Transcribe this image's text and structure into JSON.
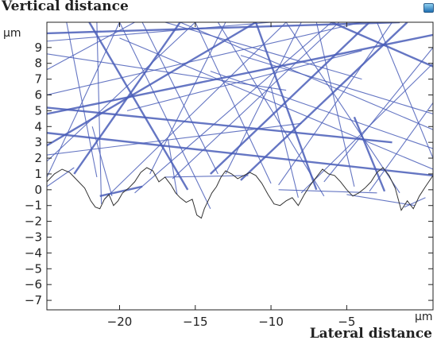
{
  "icons": {
    "app": "app-window-icon"
  },
  "colors": {
    "rays": "#4a5eb8",
    "surface": "#333333",
    "axis": "#222222"
  },
  "chart_data": {
    "type": "line",
    "title": "",
    "ylabel": "Vertical distance",
    "xlabel": "Lateral distance",
    "y_unit": "μm",
    "x_unit": "μm",
    "xlim": [
      -24.8,
      0.7
    ],
    "ylim": [
      -7.6,
      10.6
    ],
    "x_ticks": [
      -20,
      -15,
      -10,
      -5
    ],
    "y_ticks": [
      9,
      8,
      7,
      6,
      5,
      4,
      3,
      2,
      1,
      0,
      -1,
      -2,
      -3,
      -4,
      -5,
      -6,
      -7
    ],
    "grid": false,
    "legend": "none",
    "series": [
      {
        "kind": "surface_profile",
        "x": [
          -24.8,
          -24.3,
          -23.8,
          -23.3,
          -22.8,
          -22.3,
          -21.9,
          -21.6,
          -21.3,
          -21.0,
          -20.7,
          -20.4,
          -20.1,
          -19.8,
          -19.4,
          -19.0,
          -18.6,
          -18.2,
          -17.8,
          -17.4,
          -17.0,
          -16.6,
          -16.3,
          -16.0,
          -15.6,
          -15.2,
          -14.9,
          -14.6,
          -14.4,
          -14.2,
          -13.9,
          -13.6,
          -13.3,
          -13.0,
          -12.6,
          -12.2,
          -11.8,
          -11.4,
          -11.0,
          -10.6,
          -10.2,
          -9.8,
          -9.4,
          -9.0,
          -8.6,
          -8.2,
          -7.8,
          -7.4,
          -7.0,
          -6.6,
          -6.2,
          -5.8,
          -5.4,
          -5.0,
          -4.6,
          -4.2,
          -3.8,
          -3.4,
          -3.0,
          -2.6,
          -2.2,
          -1.8,
          -1.4,
          -1.0,
          -0.6,
          -0.2,
          0.2,
          0.7
        ],
        "y": [
          0.5,
          1.0,
          1.3,
          1.1,
          0.6,
          0.1,
          -0.7,
          -1.1,
          -1.2,
          -0.6,
          -0.3,
          -1.0,
          -0.7,
          -0.2,
          0.1,
          0.5,
          1.1,
          1.4,
          1.2,
          0.5,
          0.8,
          0.3,
          -0.2,
          -0.5,
          -0.8,
          -0.6,
          -1.6,
          -1.8,
          -1.2,
          -0.8,
          -0.2,
          0.2,
          0.8,
          1.2,
          1.0,
          0.7,
          0.9,
          1.1,
          0.9,
          0.4,
          -0.3,
          -0.9,
          -1.0,
          -0.7,
          -0.5,
          -1.0,
          -0.3,
          0.3,
          0.8,
          1.3,
          1.0,
          0.9,
          0.5,
          0.0,
          -0.4,
          -0.2,
          0.1,
          0.5,
          1.1,
          1.4,
          0.9,
          0.1,
          -1.3,
          -0.7,
          -1.2,
          -0.4,
          0.2,
          0.9
        ]
      },
      {
        "kind": "rays",
        "segments": [
          [
            -24.8,
            3.6,
            0.7,
            0.9
          ],
          [
            -24.8,
            8.6,
            -9.0,
            6.3
          ],
          [
            -20.0,
            9.6,
            0.7,
            1.3
          ],
          [
            -16.0,
            10.6,
            0.7,
            3.8
          ],
          [
            -22.0,
            10.6,
            -15.5,
            0.0
          ],
          [
            -18.5,
            10.6,
            -13.5,
            1.0
          ],
          [
            -13.5,
            10.6,
            -6.5,
            -0.4
          ],
          [
            -9.0,
            10.6,
            -1.5,
            -0.2
          ],
          [
            -6.0,
            10.6,
            0.7,
            7.8
          ],
          [
            -24.8,
            1.8,
            -15.0,
            10.6
          ],
          [
            -21.0,
            -0.6,
            -9.0,
            10.6
          ],
          [
            -16.5,
            0.7,
            -5.5,
            10.6
          ],
          [
            -12.0,
            0.6,
            -1.0,
            10.6
          ],
          [
            -8.0,
            -0.2,
            0.7,
            8.0
          ],
          [
            -3.5,
            -0.1,
            0.7,
            5.5
          ],
          [
            -24.8,
            6.0,
            -4.0,
            10.6
          ],
          [
            -24.8,
            4.8,
            0.7,
            9.8
          ],
          [
            -21.5,
            10.6,
            -21.2,
            -0.9
          ],
          [
            -17.0,
            0.8,
            -11.5,
            0.9
          ],
          [
            -9.5,
            0.0,
            -3.0,
            -0.2
          ],
          [
            -21.3,
            -0.4,
            -18.5,
            0.2
          ],
          [
            -1.2,
            -1.1,
            0.2,
            -0.5
          ],
          [
            -24.8,
            9.4,
            -10.0,
            10.6
          ],
          [
            -24.8,
            7.6,
            -19.0,
            10.6
          ],
          [
            -24.8,
            2.8,
            -11.0,
            10.6
          ],
          [
            -23.5,
            10.6,
            -21.5,
            0.8
          ],
          [
            -20.0,
            10.6,
            -14.0,
            -1.2
          ],
          [
            -15.0,
            10.6,
            -10.0,
            0.4
          ],
          [
            -11.0,
            10.6,
            -7.0,
            0.0
          ],
          [
            -7.0,
            10.6,
            -4.5,
            0.2
          ],
          [
            -3.0,
            10.6,
            0.7,
            2.0
          ],
          [
            -19.0,
            -0.2,
            -6.0,
            10.6
          ],
          [
            -14.0,
            1.0,
            -3.5,
            10.6
          ],
          [
            -9.5,
            0.3,
            -2.0,
            10.6
          ],
          [
            -6.5,
            0.5,
            0.7,
            9.0
          ],
          [
            -24.8,
            0.8,
            -20.0,
            10.6
          ],
          [
            -23.0,
            1.0,
            -16.0,
            10.6
          ],
          [
            -18.0,
            1.0,
            -13.0,
            10.6
          ],
          [
            -13.0,
            1.0,
            -8.0,
            10.6
          ],
          [
            -17.0,
            10.6,
            -4.0,
            7.0
          ],
          [
            -24.8,
            5.2,
            -2.0,
            3.0
          ],
          [
            -24.8,
            2.2,
            -8.0,
            4.2
          ],
          [
            -12.0,
            8.5,
            0.7,
            4.8
          ],
          [
            -14.0,
            7.5,
            0.7,
            2.6
          ],
          [
            -24.8,
            9.9,
            -1.5,
            10.6
          ],
          [
            -19.5,
            5.0,
            -4.0,
            8.8
          ],
          [
            -24.8,
            0.2,
            -23.0,
            1.4
          ],
          [
            -5.0,
            -0.3,
            -0.5,
            -1.0
          ],
          [
            -4.5,
            4.6,
            -2.5,
            -0.1
          ],
          [
            -10.0,
            6.5,
            -8.2,
            -0.5
          ],
          [
            -21.8,
            4.0,
            -20.5,
            -0.4
          ],
          [
            -16.8,
            3.2,
            -16.2,
            -0.3
          ]
        ]
      }
    ]
  }
}
